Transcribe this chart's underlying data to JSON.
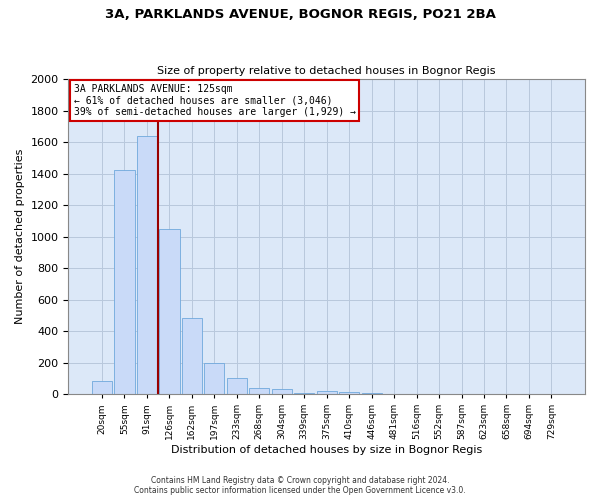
{
  "title_line1": "3A, PARKLANDS AVENUE, BOGNOR REGIS, PO21 2BA",
  "title_line2": "Size of property relative to detached houses in Bognor Regis",
  "xlabel": "Distribution of detached houses by size in Bognor Regis",
  "ylabel": "Number of detached properties",
  "categories": [
    "20sqm",
    "55sqm",
    "91sqm",
    "126sqm",
    "162sqm",
    "197sqm",
    "233sqm",
    "268sqm",
    "304sqm",
    "339sqm",
    "375sqm",
    "410sqm",
    "446sqm",
    "481sqm",
    "516sqm",
    "552sqm",
    "587sqm",
    "623sqm",
    "658sqm",
    "694sqm",
    "729sqm"
  ],
  "values": [
    80,
    1420,
    1640,
    1050,
    480,
    200,
    100,
    40,
    30,
    5,
    20,
    15,
    5,
    3,
    2,
    1,
    0,
    0,
    0,
    0,
    0
  ],
  "bar_color": "#c9daf8",
  "bar_edge_color": "#6fa8dc",
  "grid_color": "#b8c8dc",
  "background_color": "#dce8f8",
  "vline_color": "#990000",
  "annotation_text": "3A PARKLANDS AVENUE: 125sqm\n← 61% of detached houses are smaller (3,046)\n39% of semi-detached houses are larger (1,929) →",
  "annotation_box_color": "#ffffff",
  "annotation_box_edge": "#cc0000",
  "ylim": [
    0,
    2000
  ],
  "yticks": [
    0,
    200,
    400,
    600,
    800,
    1000,
    1200,
    1400,
    1600,
    1800,
    2000
  ],
  "footer_line1": "Contains HM Land Registry data © Crown copyright and database right 2024.",
  "footer_line2": "Contains public sector information licensed under the Open Government Licence v3.0."
}
